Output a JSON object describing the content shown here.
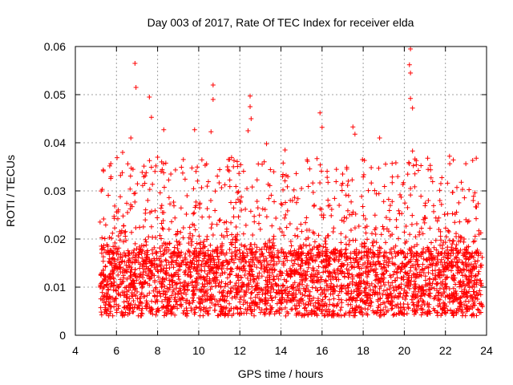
{
  "chart_data": {
    "type": "scatter",
    "title": "Day 003 of 2017, Rate Of TEC Index for receiver elda",
    "xlabel": "GPS time / hours",
    "ylabel": "ROTI / TECUs",
    "xlim": [
      4,
      24
    ],
    "ylim": [
      0,
      0.06
    ],
    "grid": true,
    "marker": "+",
    "marker_color": "#ff0000",
    "x_ticks": [
      4,
      6,
      8,
      10,
      12,
      14,
      16,
      18,
      20,
      22,
      24
    ],
    "x_tick_labels": [
      "4",
      "6",
      "8",
      "10",
      "12",
      "14",
      "16",
      "18",
      "20",
      "22",
      "24"
    ],
    "y_ticks": [
      0,
      0.01,
      0.02,
      0.03,
      0.04,
      0.05,
      0.06
    ],
    "y_tick_labels": [
      "0",
      "0.01",
      "0.02",
      "0.03",
      "0.04",
      "0.05",
      "0.06"
    ],
    "data_range": {
      "x_start": 5.2,
      "x_end": 23.8,
      "baseline_min": 0.004,
      "baseline_max": 0.017
    },
    "notable_points": [
      {
        "x": 6.9,
        "y": 0.0565
      },
      {
        "x": 6.95,
        "y": 0.0515
      },
      {
        "x": 7.6,
        "y": 0.0495
      },
      {
        "x": 7.7,
        "y": 0.0453
      },
      {
        "x": 8.3,
        "y": 0.0427
      },
      {
        "x": 9.8,
        "y": 0.0427
      },
      {
        "x": 10.7,
        "y": 0.052
      },
      {
        "x": 10.7,
        "y": 0.049
      },
      {
        "x": 10.6,
        "y": 0.0423
      },
      {
        "x": 12.5,
        "y": 0.0497
      },
      {
        "x": 12.5,
        "y": 0.0475
      },
      {
        "x": 12.55,
        "y": 0.045
      },
      {
        "x": 12.4,
        "y": 0.0425
      },
      {
        "x": 13.3,
        "y": 0.0398
      },
      {
        "x": 15.9,
        "y": 0.0462
      },
      {
        "x": 16.0,
        "y": 0.0432
      },
      {
        "x": 17.5,
        "y": 0.0433
      },
      {
        "x": 17.6,
        "y": 0.0418
      },
      {
        "x": 18.8,
        "y": 0.041
      },
      {
        "x": 20.3,
        "y": 0.0595
      },
      {
        "x": 20.25,
        "y": 0.0562
      },
      {
        "x": 20.3,
        "y": 0.0545
      },
      {
        "x": 20.3,
        "y": 0.0492
      },
      {
        "x": 20.4,
        "y": 0.0472
      },
      {
        "x": 20.4,
        "y": 0.0383
      },
      {
        "x": 21.3,
        "y": 0.0327
      },
      {
        "x": 22.2,
        "y": 0.0372
      },
      {
        "x": 23.5,
        "y": 0.0368
      },
      {
        "x": 6.3,
        "y": 0.038
      },
      {
        "x": 6.7,
        "y": 0.041
      },
      {
        "x": 8.0,
        "y": 0.037
      },
      {
        "x": 11.4,
        "y": 0.035
      },
      {
        "x": 14.2,
        "y": 0.0385
      },
      {
        "x": 15.0,
        "y": 0.0305
      },
      {
        "x": 17.0,
        "y": 0.0335
      }
    ]
  }
}
